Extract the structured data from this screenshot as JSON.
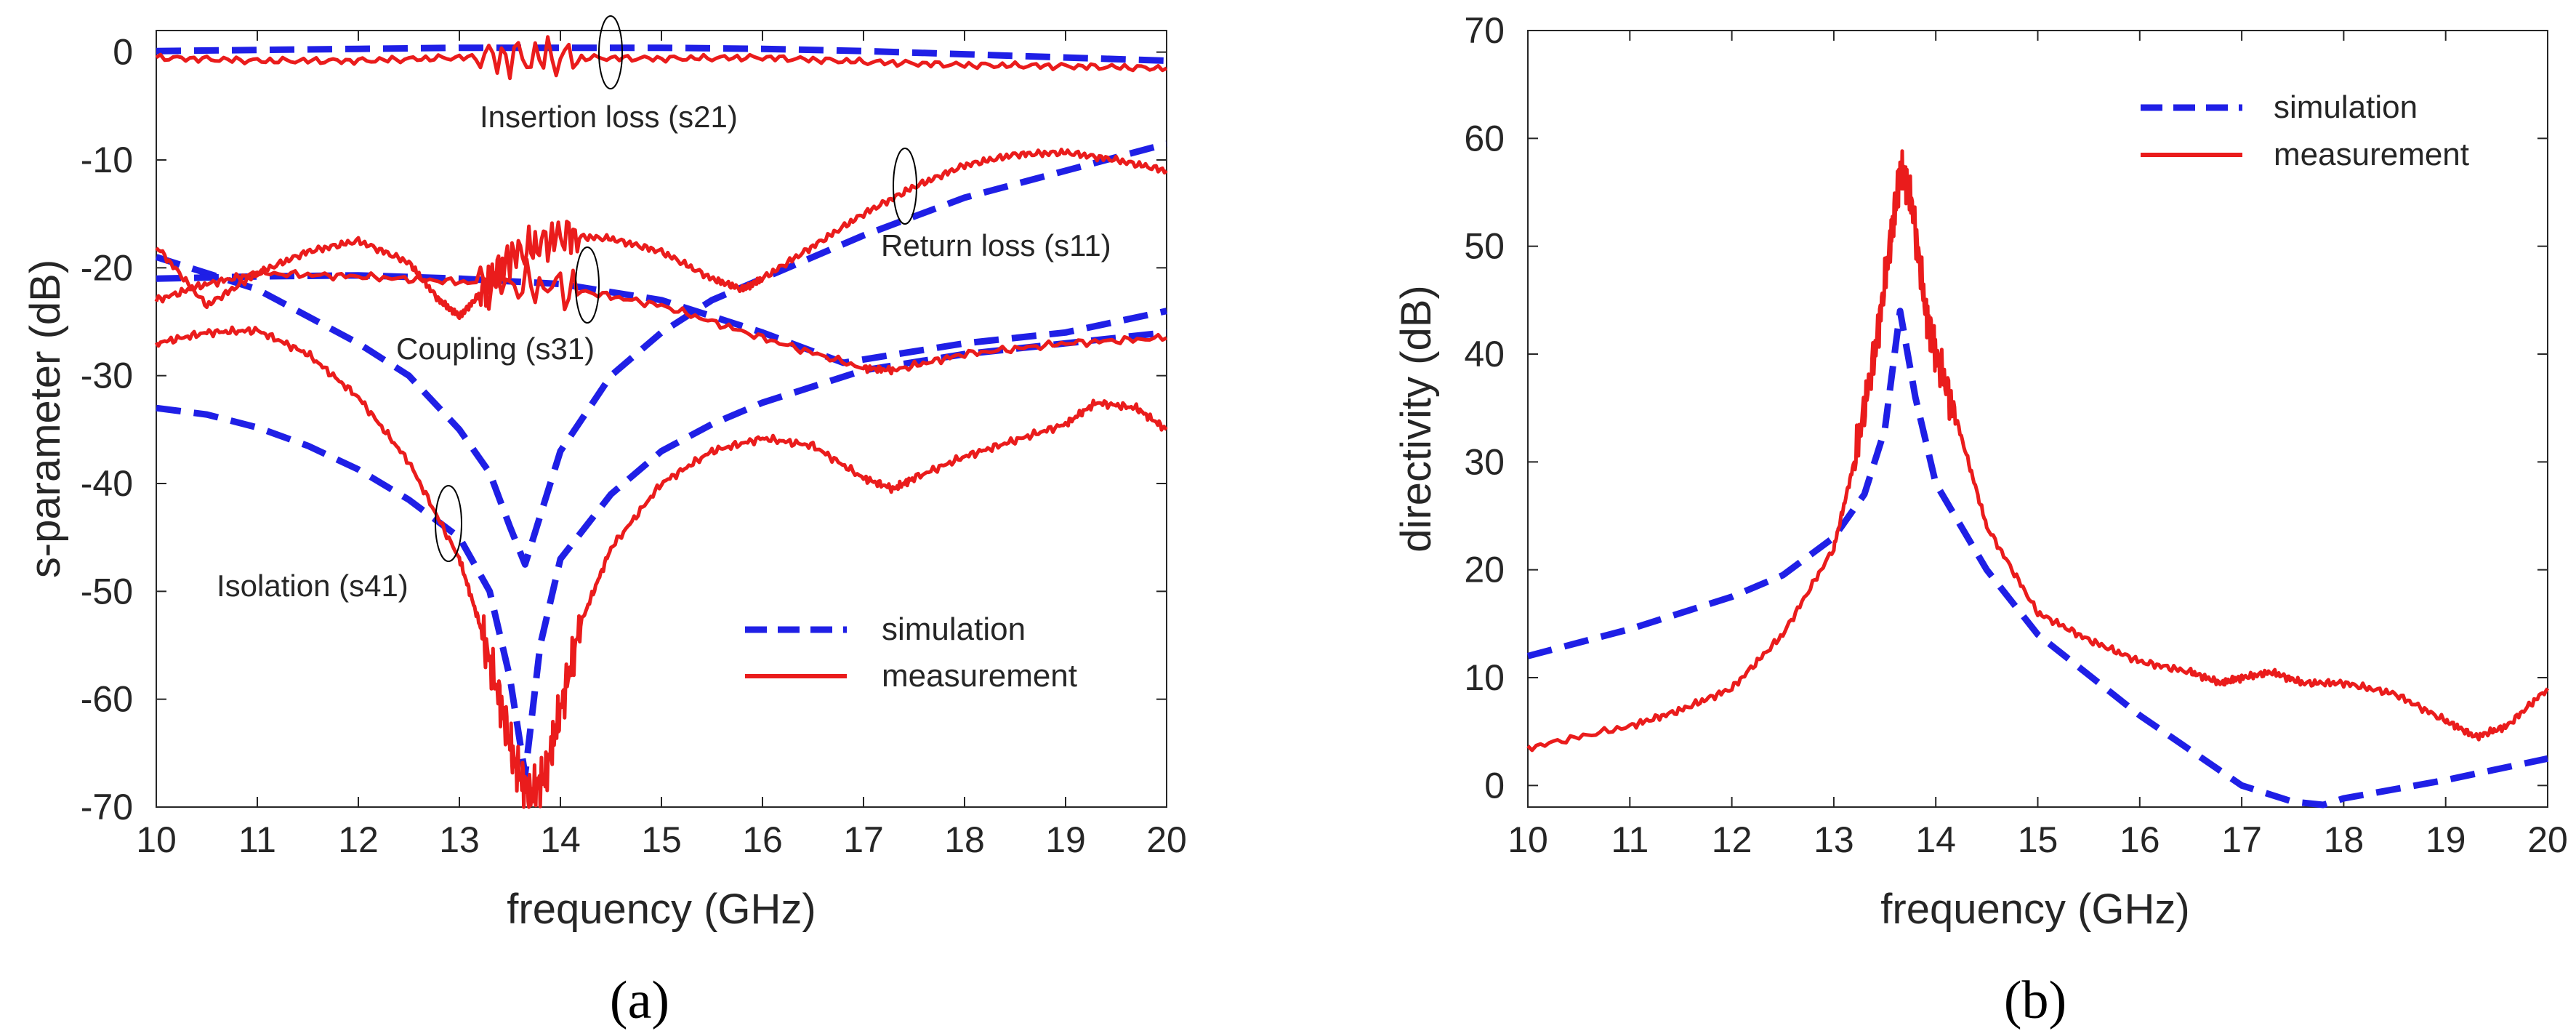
{
  "colors": {
    "simulation": "#1f1fe6",
    "measurement": "#ea1c1c",
    "axis": "#262626"
  },
  "chart_data": [
    {
      "type": "line",
      "panel_label": "(a)",
      "xlabel": "frequency (GHz)",
      "ylabel": "s-parameter (dB)",
      "xlim": [
        10,
        20
      ],
      "ylim": [
        -70,
        2
      ],
      "xticks": [
        "10",
        "11",
        "12",
        "13",
        "14",
        "15",
        "16",
        "17",
        "18",
        "19",
        "20"
      ],
      "yticks": [
        "0",
        "-10",
        "-20",
        "-30",
        "-40",
        "-50",
        "-60",
        "-70"
      ],
      "grid": false,
      "legend": {
        "placement": "bottom-right",
        "entries": [
          "simulation",
          "measurement"
        ]
      },
      "annotations": [
        {
          "text": "Insertion loss (s21)",
          "at": [
            14.5,
            -0.5
          ]
        },
        {
          "text": "Return loss (s11)",
          "at": [
            17.45,
            -12
          ]
        },
        {
          "text": "Coupling (s31)",
          "at": [
            14.2,
            -21.5
          ]
        },
        {
          "text": "Isolation (s41)",
          "at": [
            12.95,
            -43.5
          ]
        }
      ],
      "series": [
        {
          "name": "simulation",
          "trace": "s21",
          "style": "dashed",
          "x": [
            10,
            11,
            12,
            13,
            14,
            15,
            16,
            17,
            18,
            19,
            20
          ],
          "y": [
            0.1,
            0.2,
            0.3,
            0.4,
            0.4,
            0.4,
            0.3,
            0.1,
            -0.2,
            -0.5,
            -0.8
          ]
        },
        {
          "name": "simulation",
          "trace": "s11",
          "style": "dashed",
          "x": [
            10,
            11,
            12,
            12.5,
            13,
            13.3,
            13.5,
            13.65,
            13.8,
            14,
            14.5,
            15,
            15.5,
            16,
            17,
            18,
            19,
            20
          ],
          "y": [
            -19,
            -22,
            -27,
            -30,
            -35,
            -39,
            -44,
            -47.5,
            -43,
            -37,
            -30,
            -26,
            -23,
            -21,
            -17,
            -13.5,
            -11,
            -8.5
          ]
        },
        {
          "name": "simulation",
          "trace": "s31",
          "style": "dashed",
          "x": [
            10,
            11,
            12,
            13,
            14,
            15,
            16,
            16.8,
            17,
            18,
            19,
            20
          ],
          "y": [
            -21,
            -20.8,
            -20.7,
            -21,
            -21.5,
            -23,
            -26,
            -28.8,
            -28.5,
            -27,
            -26,
            -24
          ]
        },
        {
          "name": "simulation",
          "trace": "s41",
          "style": "dashed",
          "x": [
            10,
            10.5,
            11,
            11.5,
            12,
            12.5,
            13,
            13.3,
            13.5,
            13.65,
            13.8,
            14,
            14.5,
            15,
            15.5,
            16,
            17,
            18,
            19,
            20
          ],
          "y": [
            -33,
            -33.6,
            -34.8,
            -36.5,
            -38.7,
            -41.5,
            -45,
            -50,
            -58,
            -67,
            -55,
            -47,
            -41,
            -37,
            -34.5,
            -32.5,
            -29.5,
            -28,
            -27,
            -26
          ]
        },
        {
          "name": "measurement",
          "trace": "s21",
          "style": "solid",
          "x": [
            10,
            11,
            12,
            13,
            14,
            15,
            16,
            17,
            18,
            19,
            20
          ],
          "y": [
            -0.5,
            -0.8,
            -0.8,
            -0.5,
            -0.5,
            -0.6,
            -0.5,
            -0.9,
            -1.2,
            -1.3,
            -1.5
          ]
        },
        {
          "name": "measurement",
          "trace": "s11",
          "style": "solid",
          "x": [
            10,
            10.5,
            11,
            11.5,
            12,
            12.5,
            12.8,
            13,
            13.2,
            13.5,
            14,
            14.5,
            15,
            15.5,
            15.8,
            16,
            16.5,
            17,
            17.5,
            18,
            18.5,
            19,
            19.5,
            20
          ],
          "y": [
            -18,
            -23.5,
            -20.5,
            -18.5,
            -17.5,
            -19.5,
            -23,
            -24.5,
            -22.5,
            -19,
            -17,
            -17.3,
            -18.5,
            -21,
            -22,
            -21,
            -18,
            -15,
            -12.5,
            -10.5,
            -9.5,
            -9.3,
            -10,
            -11
          ]
        },
        {
          "name": "measurement",
          "trace": "s31",
          "style": "solid",
          "x": [
            10,
            10.5,
            11,
            12,
            13,
            14,
            15,
            16,
            17,
            17.3,
            18,
            19,
            20
          ],
          "y": [
            -23,
            -21.5,
            -20.5,
            -20.8,
            -21.3,
            -21.8,
            -23.5,
            -26.5,
            -29.3,
            -29.5,
            -28,
            -27,
            -26.5
          ]
        },
        {
          "name": "measurement",
          "trace": "s41",
          "style": "solid",
          "x": [
            10,
            10.5,
            11,
            11.5,
            12,
            12.5,
            13,
            13.2,
            13.4,
            13.55,
            13.7,
            13.85,
            14,
            14.2,
            14.5,
            15,
            15.5,
            16,
            16.5,
            17,
            17.3,
            17.5,
            18,
            18.5,
            19,
            19.3,
            19.7,
            20
          ],
          "y": [
            -27,
            -26,
            -25.8,
            -28,
            -32,
            -38,
            -47,
            -53,
            -60,
            -66,
            -69,
            -67,
            -61,
            -53,
            -46,
            -40,
            -37,
            -35.8,
            -36.5,
            -39.5,
            -40.5,
            -39.5,
            -37.5,
            -36,
            -34.5,
            -32.5,
            -33,
            -35
          ]
        }
      ]
    },
    {
      "type": "line",
      "panel_label": "(b)",
      "xlabel": "frequency (GHz)",
      "ylabel": "directivity (dB)",
      "xlim": [
        10,
        20
      ],
      "ylim": [
        -2,
        70
      ],
      "xticks": [
        "10",
        "11",
        "12",
        "13",
        "14",
        "15",
        "16",
        "17",
        "18",
        "19",
        "20"
      ],
      "yticks": [
        "0",
        "10",
        "20",
        "30",
        "40",
        "50",
        "60",
        "70"
      ],
      "grid": false,
      "legend": {
        "placement": "top-right",
        "entries": [
          "simulation",
          "measurement"
        ]
      },
      "series": [
        {
          "name": "simulation",
          "style": "dashed",
          "x": [
            10,
            11,
            12,
            12.5,
            13,
            13.3,
            13.5,
            13.65,
            13.8,
            14,
            14.5,
            15,
            16,
            17,
            17.5,
            17.8,
            18,
            19,
            20
          ],
          "y": [
            12,
            14.5,
            17.5,
            19.5,
            23,
            27,
            33,
            44,
            36,
            28,
            20,
            14,
            6.5,
            0,
            -1.5,
            -1.8,
            -1.2,
            0.5,
            2.5
          ]
        },
        {
          "name": "measurement",
          "style": "solid",
          "x": [
            10,
            11,
            11.5,
            12,
            12.5,
            13,
            13.2,
            13.4,
            13.55,
            13.65,
            13.75,
            13.9,
            14,
            14.2,
            14.5,
            15,
            15.5,
            16,
            16.5,
            16.8,
            17,
            17.3,
            17.6,
            18,
            18.5,
            19,
            19.3,
            19.6,
            20
          ],
          "y": [
            3.5,
            5.5,
            7,
            9,
            14,
            22,
            30,
            40,
            50,
            57,
            55,
            44,
            40,
            34,
            24,
            16,
            13.5,
            11.5,
            10.5,
            9.5,
            10,
            10.5,
            9.5,
            9.5,
            8.5,
            6,
            4.5,
            5.5,
            9
          ]
        }
      ]
    }
  ]
}
